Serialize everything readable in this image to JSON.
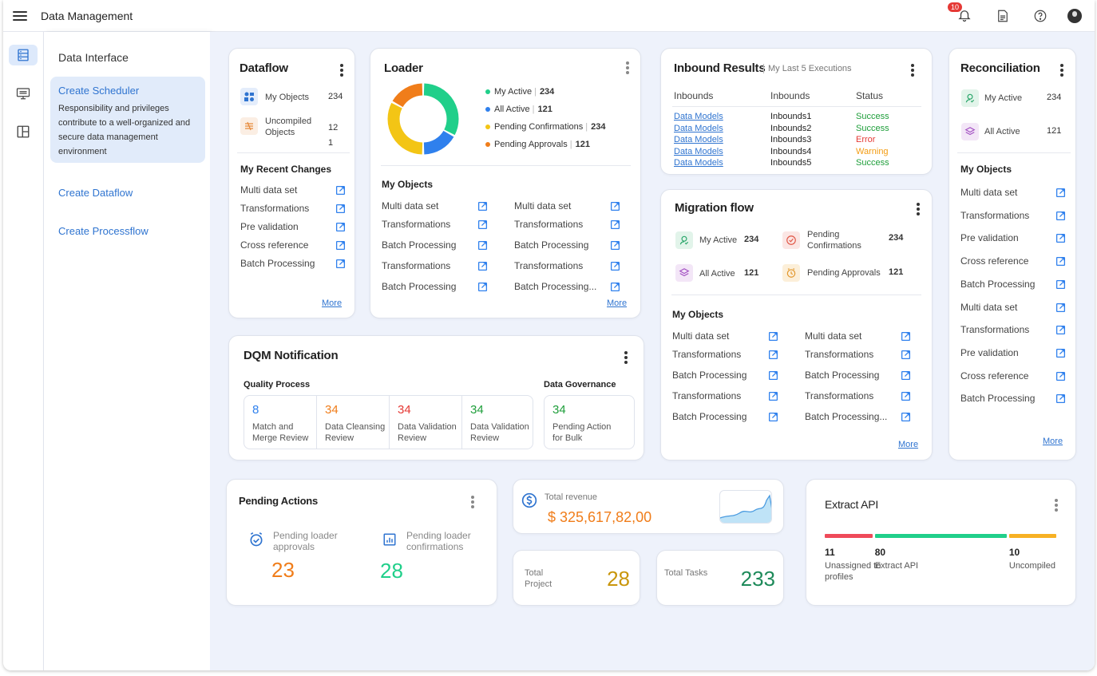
{
  "app": {
    "title": "Data Management",
    "notifications": "10"
  },
  "icons": {
    "menu": "hamburger-icon",
    "bell": "bell-icon",
    "report": "report-icon",
    "help": "help-icon",
    "avatar": "avatar-icon"
  },
  "sidebar": {
    "title": "Data Interface",
    "active": {
      "title": "Create Scheduler",
      "desc": "Responsibility and privileges contribute to a well-organized and secure data management environment"
    },
    "links": [
      "Create Dataflow",
      "Create Processflow"
    ]
  },
  "dataflow": {
    "title": "Dataflow",
    "stats": [
      {
        "label": "My Objects",
        "value": "234"
      },
      {
        "label": "Uncompiled Objects",
        "value": "12 1"
      }
    ],
    "recent_title": "My Recent Changes",
    "items": [
      "Multi data set",
      "Transformations",
      "Pre validation",
      "Cross reference",
      "Batch Processing"
    ],
    "more": "More"
  },
  "loader": {
    "title": "Loader",
    "legend": [
      {
        "label": "My Active",
        "value": "234",
        "color": "#20cf8a"
      },
      {
        "label": "All Active",
        "value": "121",
        "color": "#2f80ed"
      },
      {
        "label": "Pending Confirmations",
        "value": "234",
        "color": "#f3c515"
      },
      {
        "label": "Pending Approvals",
        "value": "121",
        "color": "#f07d1a"
      }
    ],
    "objects_title": "My Objects",
    "col1": [
      "Multi data set",
      "Transformations",
      "Batch Processing",
      "Transformations",
      "Batch Processing"
    ],
    "col2": [
      "Multi data set",
      "Transformations",
      "Batch Processing",
      "Transformations",
      "Batch Processing..."
    ],
    "more": "More"
  },
  "inbound": {
    "title": "Inbound Results",
    "subtitle": "My Last 5 Executions",
    "headers": [
      "Inbounds",
      "Inbounds",
      "Status"
    ],
    "rows": [
      {
        "model": "Data Models",
        "inbound": "Inbounds1",
        "status": "Success",
        "color": "#1e9e3a"
      },
      {
        "model": "Data Models",
        "inbound": "Inbounds2",
        "status": "Success",
        "color": "#1e9e3a"
      },
      {
        "model": "Data Models",
        "inbound": "Inbounds3",
        "status": "Error",
        "color": "#e53935"
      },
      {
        "model": "Data Models",
        "inbound": "Inbounds4",
        "status": "Warning",
        "color": "#f39c12"
      },
      {
        "model": "Data Models",
        "inbound": "Inbounds5",
        "status": "Success",
        "color": "#1e9e3a"
      }
    ]
  },
  "migration": {
    "title": "Migration flow",
    "stats": [
      {
        "label": "My Active",
        "value": "234"
      },
      {
        "label": "Pending Confirmations",
        "value": "234"
      },
      {
        "label": "All Active",
        "value": "121"
      },
      {
        "label": "Pending Approvals",
        "value": "121"
      }
    ],
    "objects_title": "My Objects",
    "col1": [
      "Multi data set",
      "Transformations",
      "Batch Processing",
      "Transformations",
      "Batch Processing"
    ],
    "col2": [
      "Multi data set",
      "Transformations",
      "Batch Processing",
      "Transformations",
      "Batch Processing..."
    ],
    "more": "More"
  },
  "reconciliation": {
    "title": "Reconciliation",
    "stats": [
      {
        "label": "My Active",
        "value": "234"
      },
      {
        "label": "All Active",
        "value": "121"
      }
    ],
    "objects_title": "My Objects",
    "items": [
      "Multi data set",
      "Transformations",
      "Pre validation",
      "Cross reference",
      "Batch Processing",
      "Multi data set",
      "Transformations",
      "Pre validation",
      "Cross reference",
      "Batch Processing"
    ],
    "more": "More"
  },
  "dqm": {
    "title": "DQM Notification",
    "quality_title": "Quality Process",
    "governance_title": "Data Governance",
    "quality": [
      {
        "value": "8",
        "label": "Match and Merge Review",
        "color": "#2f80ed"
      },
      {
        "value": "34",
        "label": "Data Cleansing Review",
        "color": "#f07d1a"
      },
      {
        "value": "34",
        "label": "Data Validation Review",
        "color": "#e53935"
      },
      {
        "value": "34",
        "label": "Data Validation Review",
        "color": "#1e9e3a"
      }
    ],
    "governance": [
      {
        "value": "34",
        "label": "Pending Action for Bulk",
        "color": "#1e9e3a"
      }
    ]
  },
  "pending": {
    "title": "Pending Actions",
    "items": [
      {
        "label": "Pending loader approvals",
        "value": "23",
        "color": "#f07d1a"
      },
      {
        "label": "Pending loader confirmations",
        "value": "28",
        "color": "#20cf8a"
      }
    ]
  },
  "revenue": {
    "label": "Total revenue",
    "value": "$ 325,617,82,00"
  },
  "totals": [
    {
      "label": "Total Project",
      "value": "28",
      "color": "#c9960c"
    },
    {
      "label": "Total Tasks",
      "value": "233",
      "color": "#1e8a5a"
    }
  ],
  "extract": {
    "title": "Extract API",
    "segments": [
      {
        "value": "11",
        "label": "Unassigned to profiles",
        "color": "#ef4a5a"
      },
      {
        "value": "80",
        "label": "Extract API",
        "color": "#20cf8a"
      },
      {
        "value": "10",
        "label": "Uncompiled",
        "color": "#f7b124"
      }
    ]
  }
}
